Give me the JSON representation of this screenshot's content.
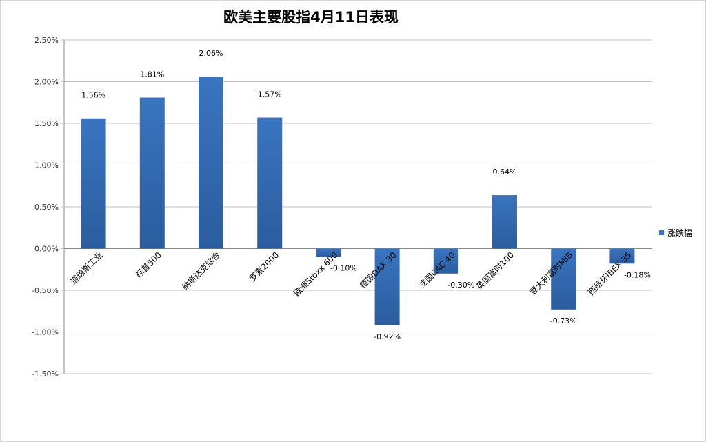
{
  "colors": {
    "bar": "#3a74c0",
    "bar_dark": "#2b5d9e",
    "grid": "#c0c0c0",
    "axis": "#888888"
  },
  "chart_data": {
    "type": "bar",
    "title": "欧美主要股指4月11日表现",
    "categories": [
      "道琼斯工业",
      "标普500",
      "纳斯达克综合",
      "罗素2000",
      "欧洲Stoxx 600",
      "德国DAX 30",
      "法国CAC 40",
      "英国富时100",
      "意大利富时MIB",
      "西班牙IBEX 35"
    ],
    "series": [
      {
        "name": "涨跌幅",
        "values": [
          1.56,
          1.81,
          2.06,
          1.57,
          -0.1,
          -0.92,
          -0.3,
          0.64,
          -0.73,
          -0.18
        ]
      }
    ],
    "data_labels": [
      "1.56%",
      "1.81%",
      "2.06%",
      "1.57%",
      "-0.10%",
      "-0.92%",
      "-0.30%",
      "0.64%",
      "-0.73%",
      "-0.18%"
    ],
    "y_ticks": [
      "2.50%",
      "2.00%",
      "1.50%",
      "1.00%",
      "0.50%",
      "0.00%",
      "-0.50%",
      "-1.00%",
      "-1.50%"
    ],
    "ylim": [
      -1.5,
      2.5
    ],
    "grid": true,
    "legend_position": "right"
  }
}
